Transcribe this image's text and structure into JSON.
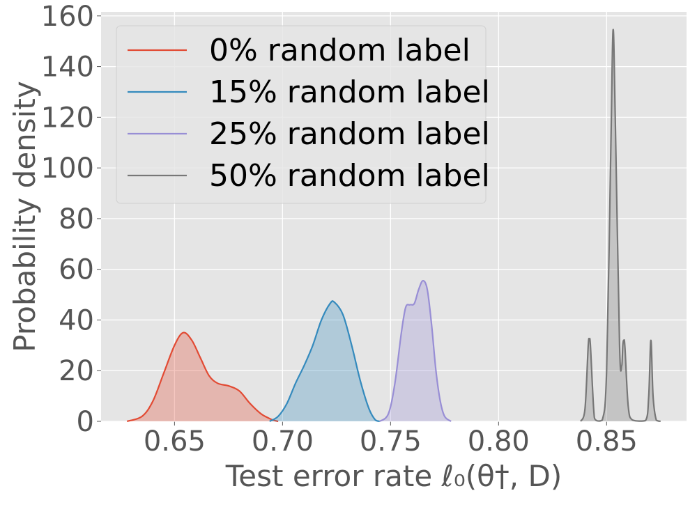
{
  "chart_data": {
    "type": "density",
    "xlabel": "Test error rate ℓ₀(θ†, D)",
    "ylabel": "Probability density",
    "xlim": [
      0.616,
      0.887
    ],
    "ylim": [
      0,
      161.6
    ],
    "xticks": [
      0.65,
      {
        "value": 0.7,
        "label": "0.70"
      },
      0.75,
      {
        "value": 0.8,
        "label": "0.80"
      },
      0.85
    ],
    "yticks": [
      0,
      20,
      40,
      60,
      80,
      100,
      120,
      140,
      160
    ],
    "grid": true,
    "legend": "upper-left",
    "series": [
      {
        "name": "0% random label",
        "color": "#E24A33",
        "x": [
          0.628,
          0.635,
          0.64,
          0.645,
          0.65,
          0.654,
          0.658,
          0.662,
          0.666,
          0.67,
          0.675,
          0.68,
          0.685,
          0.69,
          0.695,
          0.698
        ],
        "values": [
          0,
          2,
          8,
          19,
          30,
          35,
          32,
          25,
          18,
          15,
          14,
          12,
          7,
          3,
          0.7,
          0
        ]
      },
      {
        "name": "15% random label",
        "color": "#348ABD",
        "x": [
          0.694,
          0.698,
          0.702,
          0.706,
          0.71,
          0.714,
          0.718,
          0.722,
          0.724,
          0.728,
          0.732,
          0.736,
          0.74,
          0.743,
          0.745
        ],
        "values": [
          0,
          2,
          7,
          15,
          22,
          30,
          40,
          46.5,
          47,
          42,
          30,
          16,
          5,
          0.5,
          0
        ]
      },
      {
        "name": "25% random label",
        "color": "#988ED5",
        "x": [
          0.745,
          0.749,
          0.752,
          0.755,
          0.757,
          0.759,
          0.761,
          0.763,
          0.765,
          0.767,
          0.769,
          0.771,
          0.773,
          0.775,
          0.778
        ],
        "values": [
          0,
          3,
          15,
          35,
          45,
          46,
          46.5,
          52,
          55.5,
          52,
          38,
          20,
          8,
          2,
          0
        ]
      },
      {
        "name": "50% random label",
        "color": "#777777",
        "x": [
          0.838,
          0.84,
          0.8415,
          0.842,
          0.8425,
          0.844,
          0.845,
          0.848,
          0.85,
          0.852,
          0.853,
          0.854,
          0.856,
          0.857,
          0.8575,
          0.858,
          0.8585,
          0.86,
          0.862,
          0.868,
          0.8695,
          0.8705,
          0.8715,
          0.873,
          0.875
        ],
        "values": [
          0,
          5,
          30,
          32,
          30,
          5,
          0.5,
          0.5,
          20,
          110,
          154.5,
          120,
          30,
          22,
          30,
          32,
          29,
          6,
          0.5,
          0.3,
          10,
          32,
          10,
          0.5,
          0
        ]
      }
    ]
  }
}
